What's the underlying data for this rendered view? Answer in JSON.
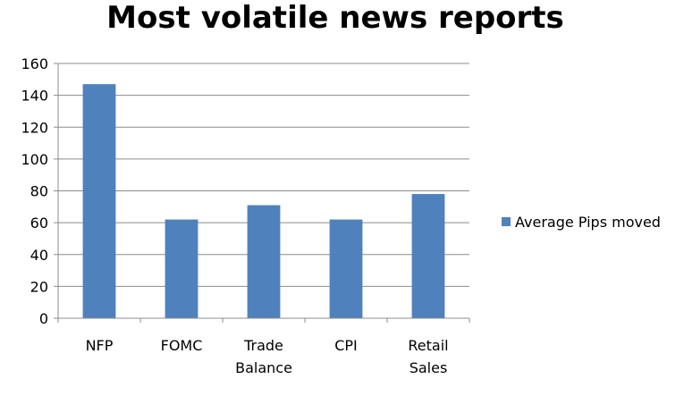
{
  "chart_data": {
    "type": "bar",
    "title": "Most volatile news reports",
    "categories": [
      [
        "NFP"
      ],
      [
        "FOMC"
      ],
      [
        "Trade",
        "Balance"
      ],
      [
        "CPI"
      ],
      [
        "Retail",
        "Sales"
      ]
    ],
    "series": [
      {
        "name": "Average Pips moved",
        "values": [
          147,
          62,
          71,
          62,
          78
        ],
        "color": "#4f81bd"
      }
    ],
    "ylim": [
      0,
      160
    ],
    "yticks": [
      0,
      20,
      40,
      60,
      80,
      100,
      120,
      140,
      160
    ],
    "grid": true,
    "legend_position": "right"
  }
}
